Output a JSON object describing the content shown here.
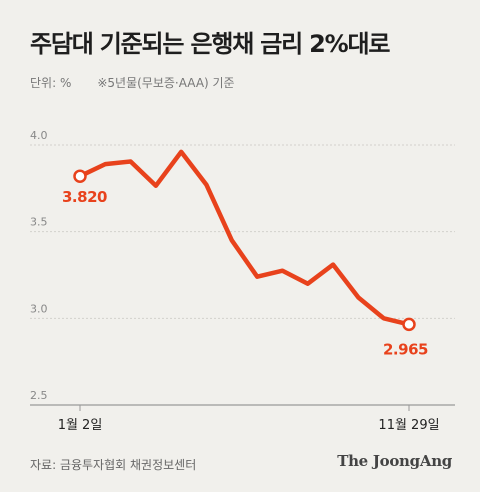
{
  "header": {
    "title": "주담대 기준되는 은행채 금리 2%대로",
    "unit": "단위: %",
    "note": "※5년물(무보증·AAA) 기준"
  },
  "footer": {
    "source": "자료: 금융투자협회 채권정보센터",
    "logo": "The JoongAng"
  },
  "colors": {
    "line": "#e8421c",
    "background": "#f1f0ec",
    "grid": "#d2d1cc"
  },
  "chart_data": {
    "type": "line",
    "title": "주담대 기준되는 은행채 금리 2%대로",
    "ylabel": "단위: %",
    "ylim": [
      2.5,
      4.0
    ],
    "yticks": [
      "2.5",
      "3.0",
      "3.5",
      "4.0"
    ],
    "y_tick_values": [
      2.5,
      3.0,
      3.5,
      4.0
    ],
    "x_tick_labels": [
      "1월 2일",
      "11월 29일"
    ],
    "values": [
      3.82,
      3.89,
      3.905,
      3.765,
      3.96,
      3.77,
      3.45,
      3.24,
      3.275,
      3.2,
      3.31,
      3.12,
      3.0,
      2.965
    ],
    "data_labels": {
      "first": "3.820",
      "last": "2.965"
    },
    "grid": true,
    "legend": "none"
  }
}
